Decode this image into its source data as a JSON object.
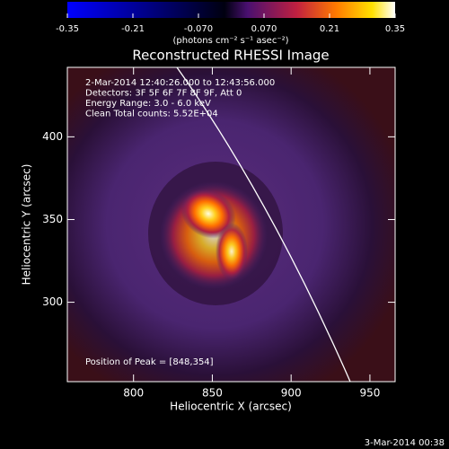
{
  "chart_data": {
    "type": "image",
    "title": "Reconstructed RHESSI Image",
    "xlabel": "Heliocentric X (arcsec)",
    "ylabel": "Heliocentric Y (arcsec)",
    "xlim": [
      758,
      966
    ],
    "xticks": [
      800,
      850,
      900,
      950
    ],
    "ylim": [
      252,
      442
    ],
    "yticks": [
      300,
      350,
      400
    ],
    "colorbar": {
      "lim": [
        -0.35,
        0.35
      ],
      "ticks": [
        -0.35,
        -0.21,
        {
          "value": -0.07,
          "label": "-0.070"
        },
        {
          "value": 0.07,
          "label": "0.070"
        },
        0.21,
        0.35
      ],
      "label": "(photons cm⁻² s⁻¹ asec⁻²)"
    },
    "annotations": [
      " 2-Mar-2014 12:40:26.000 to 12:43:56.000",
      "Detectors: 3F 5F 6F 7F 8F 9F, Att 0",
      "Energy Range: 3.0 - 6.0 keV",
      "Clean     Total counts: 5.52E+04"
    ],
    "peak_label": "Position of Peak = [848,354]",
    "footer": "3-Mar-2014 00:38"
  }
}
